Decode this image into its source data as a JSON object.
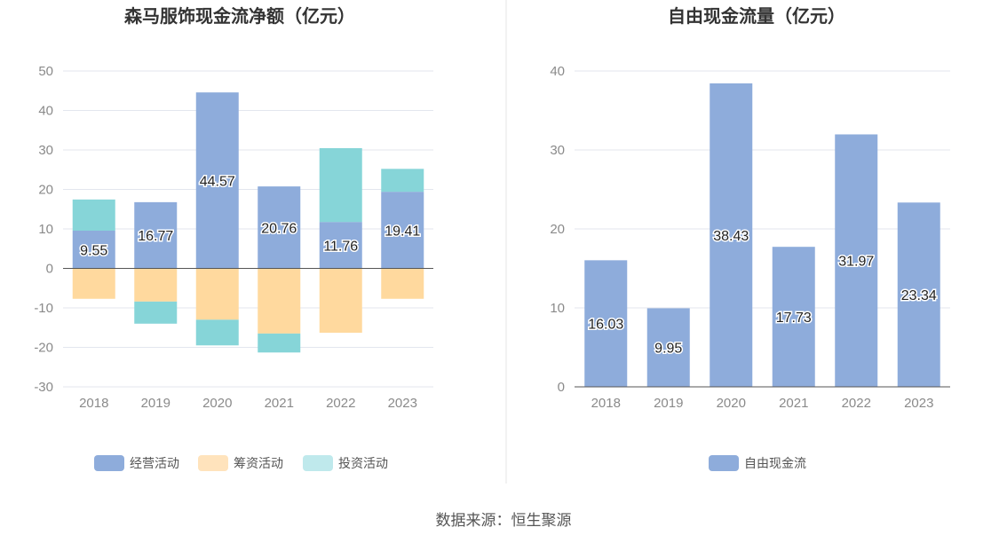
{
  "chart_data": [
    {
      "type": "bar",
      "stacked": true,
      "title": "森马服饰现金流净额（亿元）",
      "categories": [
        "2018",
        "2019",
        "2020",
        "2021",
        "2022",
        "2023"
      ],
      "ylim": [
        -30,
        50
      ],
      "yticks": [
        50,
        40,
        30,
        20,
        10,
        0,
        -10,
        -20,
        -30
      ],
      "grid": true,
      "legend": "bottom",
      "series": [
        {
          "name": "经营活动",
          "color": "#8EACDB",
          "values": [
            9.55,
            16.77,
            44.57,
            20.76,
            11.76,
            19.41
          ]
        },
        {
          "name": "筹资活动",
          "color": "#FFD99E",
          "values": [
            -7.7,
            -8.4,
            -13.0,
            -16.5,
            -16.3,
            -7.7
          ]
        },
        {
          "name": "投资活动",
          "color": "#86D5D8",
          "values": [
            7.9,
            -5.6,
            -6.5,
            -4.8,
            18.7,
            5.8
          ]
        }
      ],
      "data_labels": [
        "9.55",
        "16.77",
        "44.57",
        "20.76",
        "11.76",
        "19.41"
      ]
    },
    {
      "type": "bar",
      "title": "自由现金流量（亿元）",
      "categories": [
        "2018",
        "2019",
        "2020",
        "2021",
        "2022",
        "2023"
      ],
      "ylim": [
        0,
        40
      ],
      "yticks": [
        40,
        30,
        20,
        10,
        0
      ],
      "grid": true,
      "legend": "bottom",
      "series": [
        {
          "name": "自由现金流",
          "color": "#8EACDB",
          "values": [
            16.03,
            9.95,
            38.43,
            17.73,
            31.97,
            23.34
          ]
        }
      ],
      "data_labels": [
        "16.03",
        "9.95",
        "38.43",
        "17.73",
        "31.97",
        "23.34"
      ]
    }
  ],
  "legend_colors": {
    "经营活动": "#8EACDB",
    "筹资活动": "#FFE3BC",
    "投资活动": "#BFE9EC",
    "自由现金流": "#8EACDB"
  },
  "source": "数据来源：恒生聚源"
}
